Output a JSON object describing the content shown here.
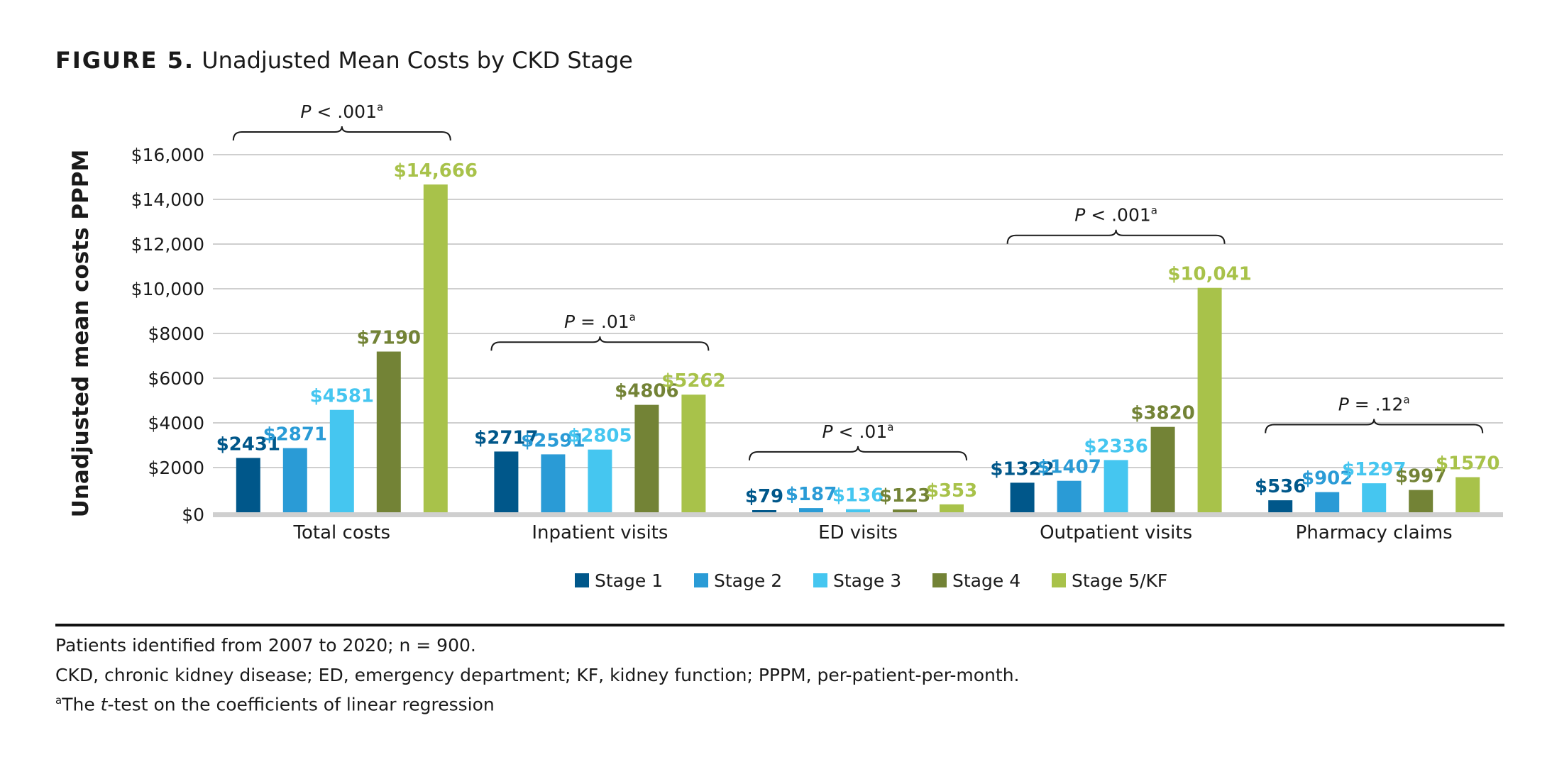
{
  "figure": {
    "label": "FIGURE 5.",
    "title": "Unadjusted Mean Costs by CKD Stage"
  },
  "chart_data": {
    "type": "bar",
    "ylabel": "Unadjusted mean costs PPPM",
    "ylim": [
      0,
      16000
    ],
    "yticks": [
      0,
      2000,
      4000,
      6000,
      8000,
      10000,
      12000,
      14000,
      16000
    ],
    "ytick_labels": [
      "$0",
      "$2000",
      "$4000",
      "$6000",
      "$8000",
      "$10,000",
      "$12,000",
      "$14,000",
      "$16,000"
    ],
    "categories": [
      "Total costs",
      "Inpatient visits",
      "ED visits",
      "Outpatient visits",
      "Pharmacy claims"
    ],
    "series": [
      {
        "name": "Stage 1",
        "color": "#00578a",
        "values": [
          2431,
          2717,
          79,
          1322,
          536
        ],
        "labels": [
          "$2431",
          "$2717",
          "$79",
          "$1322",
          "$536"
        ]
      },
      {
        "name": "Stage 2",
        "color": "#2a9bd6",
        "values": [
          2871,
          2591,
          187,
          1407,
          902
        ],
        "labels": [
          "$2871",
          "$2591",
          "$187",
          "$1407",
          "$902"
        ]
      },
      {
        "name": "Stage 3",
        "color": "#45c6f0",
        "values": [
          4581,
          2805,
          136,
          2336,
          1297
        ],
        "labels": [
          "$4581",
          "$2805",
          "$136",
          "$2336",
          "$1297"
        ]
      },
      {
        "name": "Stage 4",
        "color": "#738336",
        "values": [
          7190,
          4806,
          123,
          3820,
          997
        ],
        "labels": [
          "$7190",
          "$4806",
          "$123",
          "$3820",
          "$997"
        ]
      },
      {
        "name": "Stage 5/KF",
        "color": "#a8c24a",
        "values": [
          14666,
          5262,
          353,
          10041,
          1570
        ],
        "labels": [
          "$14,666",
          "$5262",
          "$353",
          "$10,041",
          "$1570"
        ]
      }
    ],
    "pvalues": [
      {
        "p": "P",
        "rest": " < .001",
        "sup": "a"
      },
      {
        "p": "P",
        "rest": " = .01",
        "sup": "a"
      },
      {
        "p": "P",
        "rest": " < .01",
        "sup": "a"
      },
      {
        "p": "P",
        "rest": " < .001",
        "sup": "a"
      },
      {
        "p": "P",
        "rest": " = .12",
        "sup": "a"
      }
    ],
    "grid": true,
    "legend_position": "bottom-center"
  },
  "notes": {
    "line1": "Patients identified from 2007 to 2020; n = 900.",
    "line2": "CKD, chronic kidney disease; ED, emergency department; KF, kidney function; PPPM, per-patient-per-month.",
    "line3_sup": "a",
    "line3_pre": "The ",
    "line3_italic": "t",
    "line3_post": "-test on the coefficients of linear regression"
  }
}
